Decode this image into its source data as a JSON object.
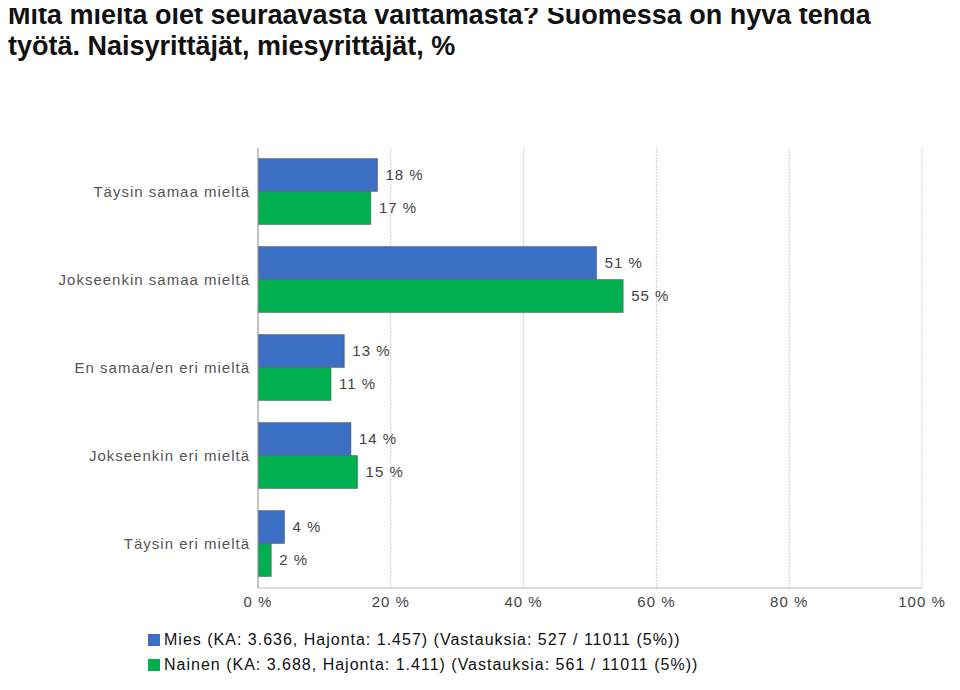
{
  "chart_data": {
    "type": "bar",
    "title": "Mitä mieltä olet seuraavasta väittämästä? Suomessa on hyvä tehdä työtä. Naisyrittäjät, miesyrittäjät, %",
    "orientation": "horizontal",
    "categories": [
      "Täysin samaa mieltä",
      "Jokseenkin samaa mieltä",
      "En samaa/en eri mieltä",
      "Jokseenkin eri mieltä",
      "Täysin eri mieltä"
    ],
    "series": [
      {
        "name": "Mies (KA: 3.636, Hajonta: 1.457) (Vastauksia: 527 / 11011 (5%))",
        "color": "#3a6fc4",
        "values": [
          18,
          51,
          13,
          14,
          4
        ],
        "value_labels": [
          "18 %",
          "51 %",
          "13 %",
          "14 %",
          "4 %"
        ]
      },
      {
        "name": "Nainen (KA: 3.688, Hajonta: 1.411) (Vastauksia: 561 / 11011 (5%))",
        "color": "#00b050",
        "values": [
          17,
          55,
          11,
          15,
          2
        ],
        "value_labels": [
          "17 %",
          "55 %",
          "11 %",
          "15 %",
          "2 %"
        ]
      }
    ],
    "xlim": [
      0,
      100
    ],
    "xticks": [
      {
        "value": 0,
        "label": "0 %"
      },
      {
        "value": 20,
        "label": "20 %"
      },
      {
        "value": 40,
        "label": "40 %"
      },
      {
        "value": 60,
        "label": "60 %"
      },
      {
        "value": 80,
        "label": "80 %"
      },
      {
        "value": 100,
        "label": "100 %"
      }
    ],
    "grid": true,
    "data_labels": true,
    "legend": "bottom"
  }
}
